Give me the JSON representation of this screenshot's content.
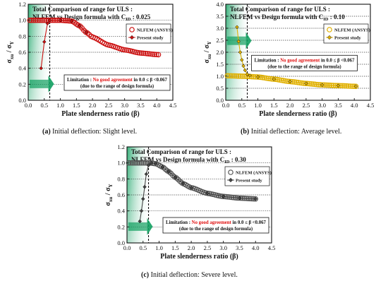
{
  "chart_data": [
    {
      "type": "scatter",
      "panel_id": "a",
      "title_line1": "Total Comparison of range for ULS :",
      "title_line2": "NLFEM vs Design formula with C",
      "title_sub": "ID",
      "title_value": " : 0.025",
      "ylabel": "σ",
      "ylabel_sub": "xu",
      "ylabel_mid": " / σ",
      "ylabel_sub2": "Y",
      "xlabel": "Plate slenderness ratio (β)",
      "xlim": [
        0.0,
        4.5
      ],
      "ylim": [
        0.0,
        1.2
      ],
      "xticks": [
        "0.0",
        "0.5",
        "1.0",
        "1.5",
        "2.0",
        "2.5",
        "3.0",
        "3.5",
        "4.0",
        "4.5"
      ],
      "yticks": [
        "0.0",
        "0.2",
        "0.4",
        "0.6",
        "0.8",
        "1.0",
        "1.2"
      ],
      "dotted_y": [
        0.2,
        0.4,
        0.6,
        0.8,
        1.0
      ],
      "dashed_x": 0.67,
      "legend": [
        "NLFEM (ANSYS)",
        "Present study"
      ],
      "legend_position": "top-right",
      "limitation_lead": "Limitation : ",
      "limitation_red": "No good agreement",
      "limitation_tail": " in 0.0 ≤ β <0.067",
      "limitation_note": "(due to the range of design formula)",
      "nlfem_color": "#cc1111",
      "present_color": "#cc1111",
      "nlfem_fill": "none",
      "anchors": [
        [
          0.05,
          1.0
        ],
        [
          1.0,
          1.0
        ],
        [
          1.35,
          0.99
        ],
        [
          1.6,
          0.93
        ],
        [
          1.8,
          0.85
        ],
        [
          2.0,
          0.79
        ],
        [
          2.5,
          0.69
        ],
        [
          3.0,
          0.63
        ],
        [
          3.5,
          0.59
        ],
        [
          4.05,
          0.57
        ]
      ],
      "present": [
        [
          0.4,
          0.4
        ],
        [
          0.5,
          0.73
        ],
        [
          0.6,
          0.96
        ],
        [
          0.67,
          1.0
        ],
        [
          1.0,
          1.0
        ],
        [
          1.35,
          0.99
        ],
        [
          1.6,
          0.93
        ],
        [
          1.8,
          0.85
        ]
      ]
    },
    {
      "type": "scatter",
      "panel_id": "b",
      "title_line1": "Total Comparison of range for ULS :",
      "title_line2": "NLFEM vs Design formula with C",
      "title_sub": "ID",
      "title_value": " : 0.10",
      "ylabel": "σ",
      "ylabel_sub": "xu",
      "ylabel_mid": " / σ",
      "ylabel_sub2": "Y",
      "xlabel": "Plate slenderness ratio (β)",
      "xlim": [
        0.0,
        4.5
      ],
      "ylim": [
        0.0,
        4.0
      ],
      "xticks": [
        "0.0",
        "0.5",
        "1.0",
        "1.5",
        "2.0",
        "2.5",
        "3.0",
        "3.5",
        "4.0",
        "4.5"
      ],
      "yticks": [
        "0.0",
        "0.5",
        "1.0",
        "1.5",
        "2.0",
        "2.5",
        "3.0",
        "3.5",
        "4.0"
      ],
      "dotted_y": [
        0.5,
        1.0,
        1.5,
        2.0,
        2.5,
        3.0,
        3.5
      ],
      "dashed_x": 0.67,
      "legend": [
        "NLFEM (ANSYS)",
        "Present study"
      ],
      "legend_position": "top-right",
      "limitation_lead": "Limitation : ",
      "limitation_red": "No good agreement",
      "limitation_tail": " in 0.0 ≤ β <0.067",
      "limitation_note": "(due to the range of design formula)",
      "nlfem_color": "#e0b000",
      "present_color": "#e0b000",
      "nlfem_fill": "none",
      "anchors": [
        [
          0.05,
          1.02
        ],
        [
          0.6,
          1.0
        ],
        [
          1.0,
          0.97
        ],
        [
          1.5,
          0.88
        ],
        [
          2.0,
          0.78
        ],
        [
          2.5,
          0.7
        ],
        [
          3.0,
          0.64
        ],
        [
          3.5,
          0.61
        ],
        [
          4.05,
          0.58
        ]
      ],
      "present": [
        [
          0.35,
          3.05
        ],
        [
          0.4,
          2.45
        ],
        [
          0.45,
          2.0
        ],
        [
          0.5,
          1.68
        ],
        [
          0.55,
          1.43
        ],
        [
          0.6,
          1.25
        ],
        [
          0.67,
          1.08
        ],
        [
          0.75,
          1.03
        ],
        [
          1.0,
          0.97
        ],
        [
          1.5,
          0.88
        ],
        [
          2.0,
          0.78
        ],
        [
          2.5,
          0.7
        ],
        [
          3.0,
          0.64
        ],
        [
          3.5,
          0.61
        ],
        [
          4.05,
          0.58
        ]
      ]
    },
    {
      "type": "scatter",
      "panel_id": "c",
      "title_line1": "Total Comparison of range for ULS :",
      "title_line2": "NLFEM vs Design formula with C",
      "title_sub": "ID",
      "title_value": " : 0.30",
      "ylabel": "σ",
      "ylabel_sub": "xu",
      "ylabel_mid": " / σ",
      "ylabel_sub2": "Y",
      "xlabel": "Plate slenderness ratio (β)",
      "xlim": [
        0.0,
        4.5
      ],
      "ylim": [
        0.0,
        1.2
      ],
      "xticks": [
        "0.0",
        "0.5",
        "1.0",
        "1.5",
        "2.0",
        "2.5",
        "3.0",
        "3.5",
        "4.0",
        "4.5"
      ],
      "yticks": [
        "0.0",
        "0.2",
        "0.4",
        "0.6",
        "0.8",
        "1.0",
        "1.2"
      ],
      "dotted_y": [
        0.2,
        0.4,
        0.6,
        0.8,
        1.0
      ],
      "dashed_x": 0.67,
      "legend": [
        "NLFEM (ANSYS)",
        "Present study"
      ],
      "legend_position": "top-right",
      "limitation_lead": "Limitation : ",
      "limitation_red": "No good agreement",
      "limitation_tail": " in 0.0 ≤ β <0.067",
      "limitation_note": "(due to the range of design formula)",
      "nlfem_color": "#555555",
      "present_color": "#444444",
      "nlfem_fill": "none",
      "anchors": [
        [
          0.05,
          1.0
        ],
        [
          0.7,
          1.0
        ],
        [
          0.9,
          0.99
        ],
        [
          1.1,
          0.95
        ],
        [
          1.3,
          0.89
        ],
        [
          1.5,
          0.82
        ],
        [
          1.75,
          0.74
        ],
        [
          2.0,
          0.69
        ],
        [
          2.5,
          0.62
        ],
        [
          3.0,
          0.58
        ],
        [
          3.5,
          0.56
        ],
        [
          4.0,
          0.55
        ]
      ],
      "present": [
        [
          0.4,
          0.27
        ],
        [
          0.45,
          0.4
        ],
        [
          0.5,
          0.55
        ],
        [
          0.55,
          0.7
        ],
        [
          0.6,
          0.86
        ],
        [
          0.67,
          0.97
        ],
        [
          0.75,
          1.0
        ],
        [
          0.9,
          0.99
        ],
        [
          1.1,
          0.95
        ],
        [
          1.3,
          0.89
        ],
        [
          1.5,
          0.82
        ],
        [
          1.75,
          0.74
        ],
        [
          2.0,
          0.69
        ],
        [
          2.5,
          0.62
        ],
        [
          3.0,
          0.58
        ],
        [
          3.5,
          0.56
        ],
        [
          4.0,
          0.55
        ]
      ]
    }
  ],
  "captions": {
    "a": {
      "tag": "(a)",
      "text": " Initial deflection: Slight level."
    },
    "b": {
      "tag": "(b)",
      "text": " Initial deflection: Average level."
    },
    "c": {
      "tag": "(c)",
      "text": " Initial deflection: Severe level."
    }
  }
}
